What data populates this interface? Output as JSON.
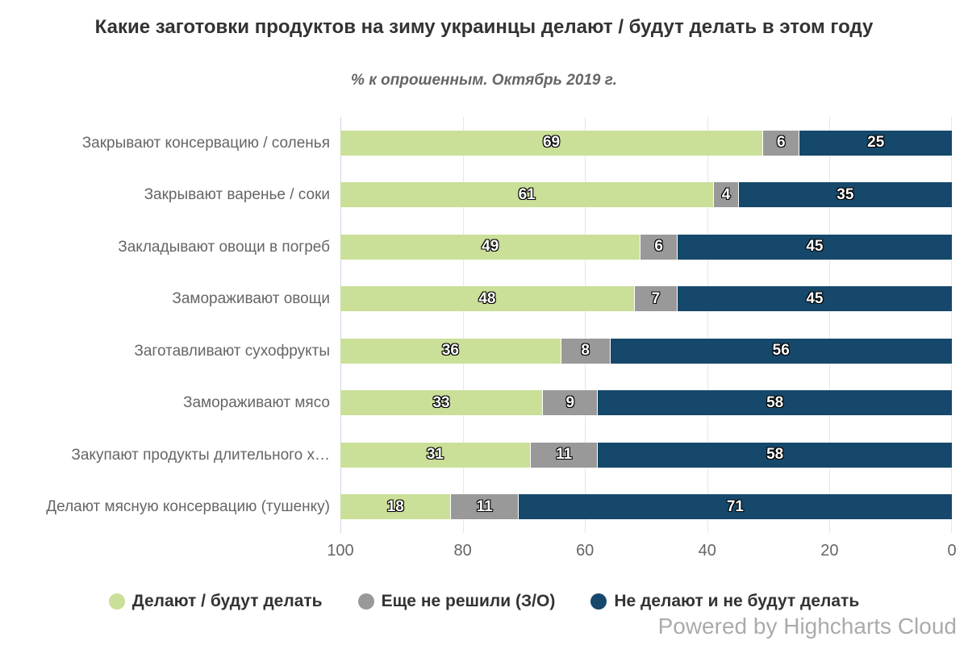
{
  "title": "Какие заготовки продуктов на зиму украинцы делают / будут делать в этом году",
  "subtitle": "% к опрошенным. Октябрь 2019 г.",
  "credits": "Powered by Highcharts Cloud",
  "colors": {
    "title": "#333333",
    "subtitle": "#666666",
    "gridline": "#e6e6e6",
    "axis_line": "#ccd6eb",
    "credits": "#ababab"
  },
  "chart_data": {
    "type": "bar",
    "stacked": true,
    "orientation": "horizontal",
    "axis_reversed": true,
    "grid": true,
    "legend_position": "bottom",
    "value_axis": {
      "min": 0,
      "max": 100,
      "tick_interval": 20
    },
    "xaxis_ticks": [
      "100",
      "80",
      "60",
      "40",
      "20",
      "0"
    ],
    "categories": [
      "Закрывают консервацию / соленья",
      "Закрывают варенье / соки",
      "Закладывают овощи в погреб",
      "Замораживают овощи",
      "Заготавливают сухофрукты",
      "Замораживают мясо",
      "Закупают продукты длительного х…",
      "Делают мясную консервацию (тушенку)"
    ],
    "series": [
      {
        "name": "Делают / будут делать",
        "color": "#cadf98",
        "values": [
          69,
          61,
          49,
          48,
          36,
          33,
          31,
          18
        ]
      },
      {
        "name": "Еще не решили (З/О)",
        "color": "#999999",
        "values": [
          6,
          4,
          6,
          7,
          8,
          9,
          11,
          11
        ]
      },
      {
        "name": "Не делают и не будут делать",
        "color": "#15486b",
        "values": [
          25,
          35,
          45,
          45,
          56,
          58,
          58,
          71
        ]
      }
    ]
  }
}
